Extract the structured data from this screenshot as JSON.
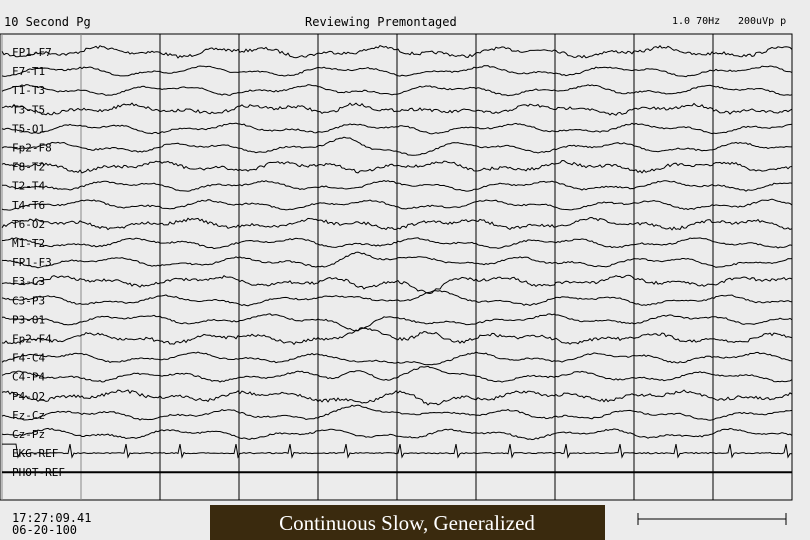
{
  "header": {
    "page": "10 Second Pg",
    "mode": "Reviewing Premontaged",
    "filter": "1.0 70Hz",
    "sensitivity": "200uVp p"
  },
  "channels": [
    "FP1-F7",
    "F7-T1",
    "T1-T3",
    "T3-T5",
    "T5-O1",
    "Fp2-F8",
    "F8-T2",
    "T2-T4",
    "T4-T6",
    "T6-O2",
    "M1-T2",
    "FP1-F3",
    "F3-C3",
    "C3-P3",
    "P3-O1",
    "Fp2-F4",
    "F4-C4",
    "C4-P4",
    "P4-O2",
    "Fz-Cz",
    "Cz-Pz",
    "EKG-REF",
    "PHOT-REF"
  ],
  "footer": {
    "time": "17:27:09.41",
    "date": "06-20-100",
    "caption": "Continuous Slow, Generalized"
  }
}
